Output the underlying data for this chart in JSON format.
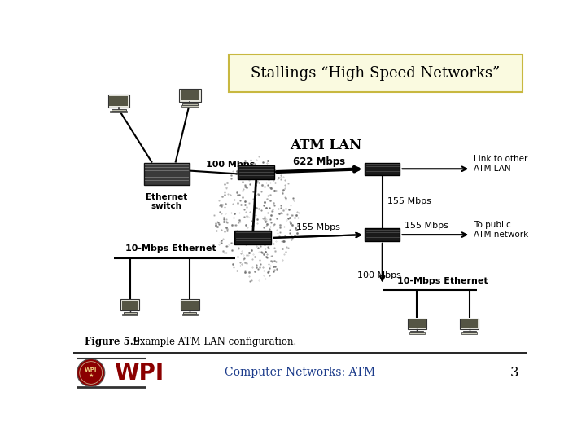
{
  "title": "Stallings “High-Speed Networks”",
  "title_box_color": "#fafae0",
  "title_box_edge": "#c8b840",
  "background_color": "#ffffff",
  "footer_text": "Computer Networks: ATM",
  "footer_color": "#1a3a8a",
  "footer_number": "3",
  "footer_number_color": "#000000",
  "figure_caption_bold": "Figure 5.9",
  "figure_caption_rest": "   Example ATM LAN configuration.",
  "atm_lan_label": "ATM LAN",
  "labels": {
    "ethernet_switch": "Ethernet\nswitch",
    "10mbps_ethernet_left": "10-Mbps Ethernet",
    "10mbps_ethernet_right": "10-Mbps Ethernet",
    "link_other_atm": "Link to other\nATM LAN",
    "to_public_atm": "To public\nATM network",
    "speed_100_left": "100 Mbps",
    "speed_622": "622 Mbps",
    "speed_155_right_top": "155 Mbps",
    "speed_155_mid": "155 Mbps",
    "speed_155_right_mid": "155 Mbps",
    "speed_100_mid": "100 Mbps"
  },
  "line_color": "#000000",
  "device_color": "#111111",
  "cloud_color": "#888888",
  "wpi_color": "#8b0000",
  "wpi_text": "WPI"
}
